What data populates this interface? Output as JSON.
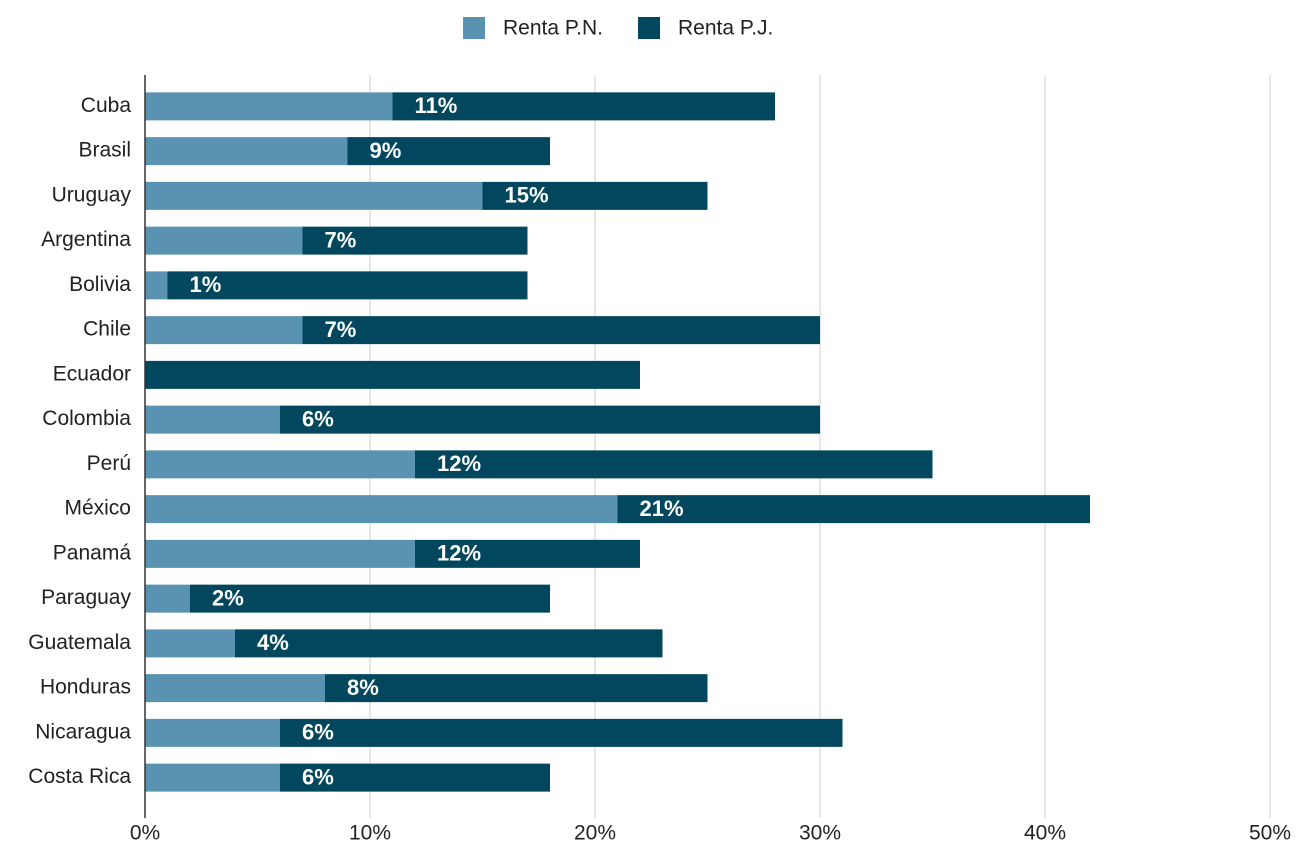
{
  "chart_data": {
    "type": "stacked-bar-horizontal",
    "categories": [
      "Cuba",
      "Brasil",
      "Uruguay",
      "Argentina",
      "Bolivia",
      "Chile",
      "Ecuador",
      "Colombia",
      "Perú",
      "México",
      "Panamá",
      "Paraguay",
      "Guatemala",
      "Honduras",
      "Nicaragua",
      "Costa Rica"
    ],
    "series": [
      {
        "name": "Renta P.N.",
        "color": "#5a93b2",
        "values": [
          11,
          9,
          15,
          7,
          1,
          7,
          0,
          6,
          12,
          21,
          12,
          2,
          4,
          8,
          6,
          6
        ],
        "value_labels": [
          "11%",
          "9%",
          "15%",
          "7%",
          "1%",
          "7%",
          null,
          "6%",
          "12%",
          "21%",
          "12%",
          "2%",
          "4%",
          "8%",
          "6%",
          "6%"
        ]
      },
      {
        "name": "Renta P.J.",
        "color": "#02475e",
        "values": [
          17,
          9,
          10,
          10,
          16,
          23,
          22,
          24,
          23,
          21,
          10,
          16,
          19,
          17,
          25,
          12
        ]
      }
    ],
    "xlim": [
      0,
      50
    ],
    "xticks": [
      {
        "value": 0,
        "label": "0%"
      },
      {
        "value": 10,
        "label": "10%"
      },
      {
        "value": 20,
        "label": "20%"
      },
      {
        "value": 30,
        "label": "30%"
      },
      {
        "value": 40,
        "label": "40%"
      },
      {
        "value": 50,
        "label": "50%"
      }
    ],
    "grid": true,
    "legend": "top"
  }
}
